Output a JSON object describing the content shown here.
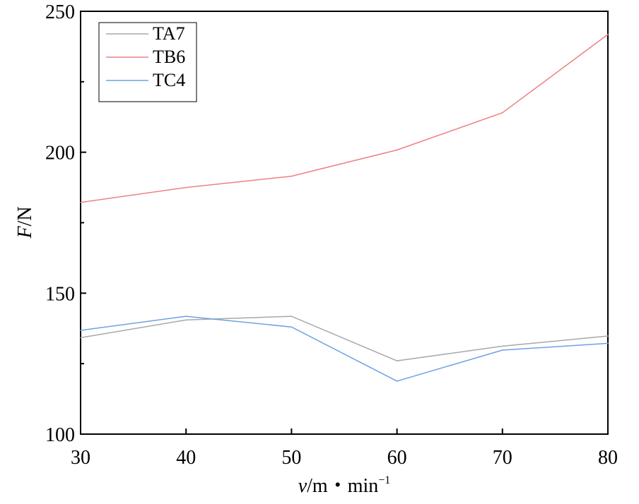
{
  "chart_data": {
    "type": "line",
    "title": "",
    "xlabel": "v/m・min⁻¹",
    "xlabel_var": "v",
    "xlabel_unit": "/m・min",
    "xlabel_exp": "−1",
    "ylabel_var": "F",
    "ylabel_unit": "/N",
    "xlim": [
      30,
      80
    ],
    "ylim": [
      100,
      250
    ],
    "x": [
      30,
      40,
      50,
      60,
      70,
      80
    ],
    "xticks": [
      "30",
      "40",
      "50",
      "60",
      "70",
      "80"
    ],
    "yticks": [
      "100",
      "150",
      "200",
      "250"
    ],
    "yminor": [
      125,
      175,
      225
    ],
    "grid": false,
    "legend": "top-left",
    "series": [
      {
        "name": "TA7",
        "color": "#a8a8a8",
        "values": [
          134.2,
          140.5,
          141.8,
          126.0,
          131.2,
          134.8
        ]
      },
      {
        "name": "TB6",
        "color": "#f08080",
        "values": [
          182.2,
          187.5,
          191.5,
          200.8,
          214.0,
          241.8
        ]
      },
      {
        "name": "TC4",
        "color": "#6fa0e6",
        "values": [
          136.8,
          141.8,
          138.0,
          118.8,
          129.8,
          132.2
        ]
      }
    ]
  }
}
